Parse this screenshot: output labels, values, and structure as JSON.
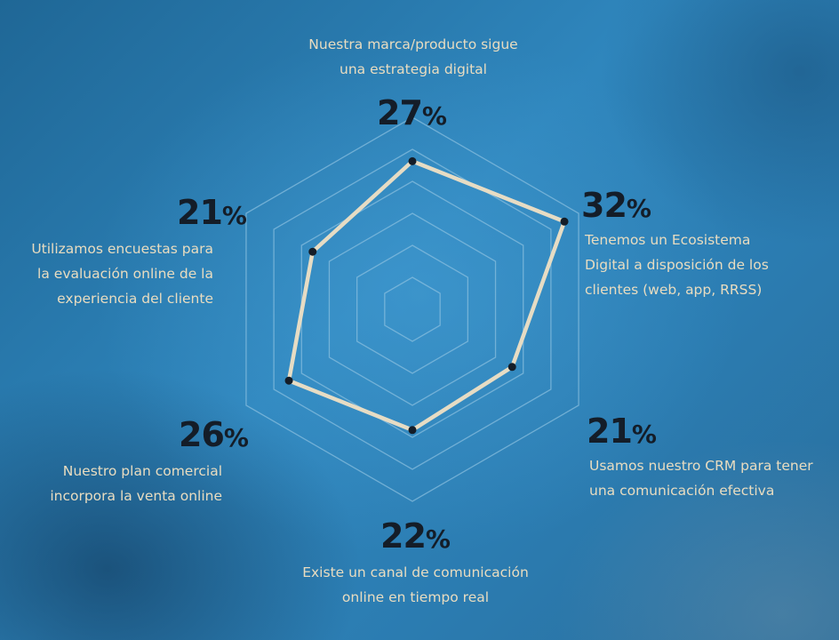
{
  "colors": {
    "background": "#2a76a8",
    "grid": "#8cc0e0",
    "series_line": "#e6dcc4",
    "marker": "#141d28",
    "percent_text": "#141d28",
    "label_text": "#e8dcc0"
  },
  "chart_data": {
    "type": "radar",
    "title": "",
    "max": 35,
    "grid_levels": 6,
    "categories": [
      [
        "Nuestra marca/producto sigue",
        "una estrategia digital"
      ],
      [
        "Tenemos un Ecosistema",
        "Digital a disposición de los",
        "clientes (web, app, RRSS)"
      ],
      [
        "Usamos nuestro CRM para tener",
        "una comunicación efectiva"
      ],
      [
        "Existe un canal de comunicación",
        "online en tiempo real"
      ],
      [
        "Nuestro plan comercial",
        "incorpora la venta online"
      ],
      [
        "Utilizamos encuestas para",
        "la evaluación online de la",
        "experiencia del cliente"
      ]
    ],
    "values": [
      27,
      32,
      21,
      22,
      26,
      21
    ],
    "value_labels": [
      "27",
      "32",
      "21",
      "22",
      "26",
      "21"
    ],
    "value_suffix": "%"
  }
}
